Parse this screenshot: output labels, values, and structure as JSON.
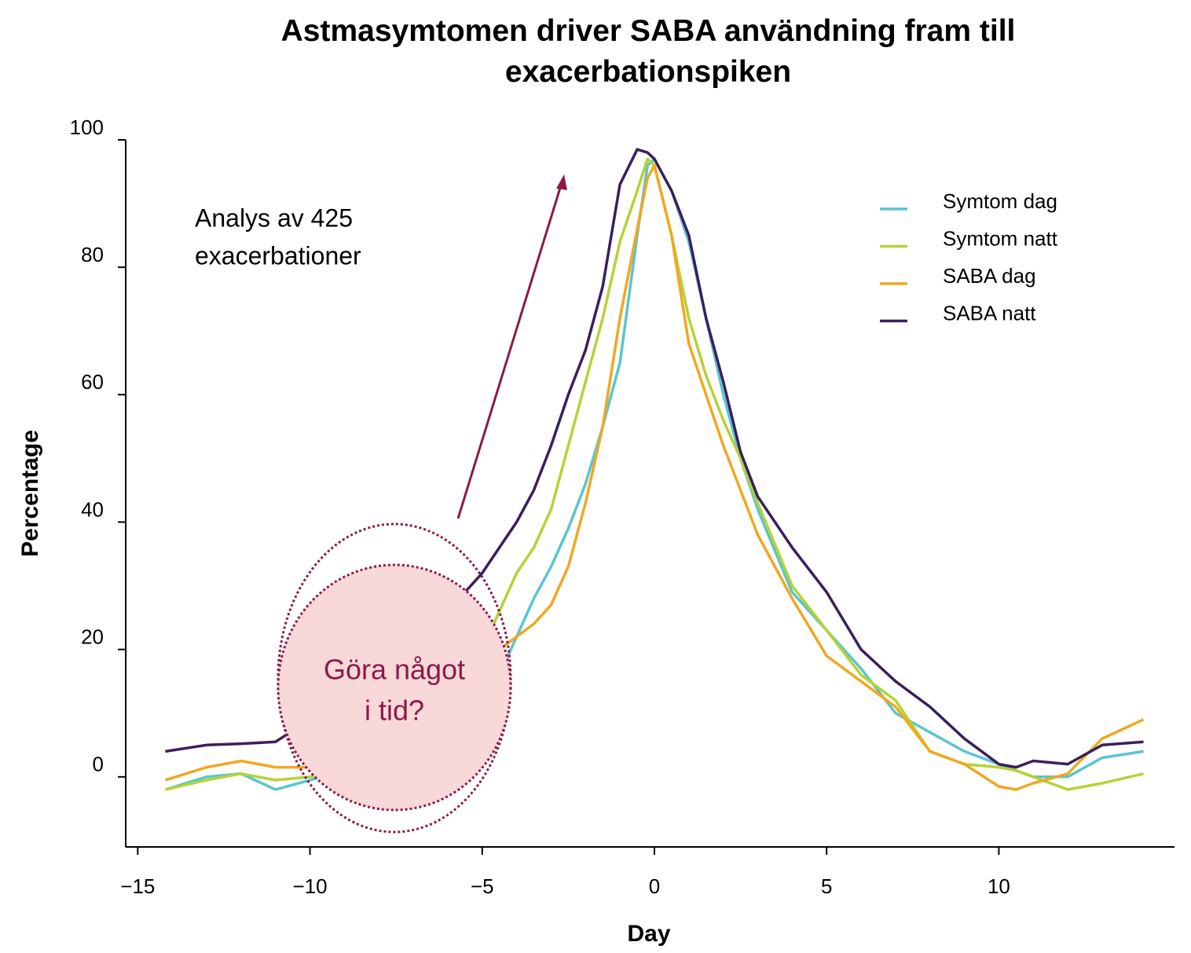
{
  "chart_data": {
    "type": "line",
    "title": "Astmasymtomen driver SABA användning fram till exacerbationspiken",
    "x_label": "Day",
    "y_label": "Percentage",
    "annotation": [
      "Analys av 425",
      "exacerbationer"
    ],
    "callout": [
      "Göra något",
      "i tid?"
    ],
    "x": [
      -14.2,
      -13,
      -12,
      -11,
      -10,
      -9,
      -8,
      -7,
      -6,
      -5,
      -4.5,
      -4,
      -3.5,
      -3,
      -2.5,
      -2,
      -1.5,
      -1,
      -0.5,
      -0.2,
      0,
      0.5,
      1,
      1.5,
      2,
      2.5,
      3,
      4,
      5,
      6,
      7,
      8,
      9,
      10,
      10.5,
      11,
      12,
      13,
      14.2
    ],
    "series": [
      {
        "name": "Symtom dag",
        "color": "#5bc4d1",
        "values": [
          -2,
          0,
          0.5,
          -2,
          -0.5,
          1,
          2,
          4,
          7,
          12,
          16,
          22,
          28,
          33,
          39,
          46,
          55,
          65,
          85,
          96,
          97,
          92,
          84,
          72,
          60,
          50,
          42,
          29,
          23,
          17,
          10,
          7,
          4,
          2,
          1,
          0,
          0,
          3,
          4
        ]
      },
      {
        "name": "Symtom natt",
        "color": "#b5d334",
        "values": [
          -2,
          -0.5,
          0.5,
          -0.5,
          0,
          1,
          3,
          7,
          12,
          20,
          26,
          32,
          36,
          42,
          52,
          62,
          72,
          84,
          92,
          97,
          96,
          85,
          72,
          63,
          56,
          50,
          43,
          30,
          23,
          16,
          12,
          4,
          2,
          1.5,
          1,
          0,
          -2,
          -1,
          0.5
        ]
      },
      {
        "name": "SABA dag",
        "color": "#f0a820",
        "values": [
          -0.5,
          1.5,
          2.5,
          1.5,
          1.5,
          2,
          4,
          7,
          12,
          18,
          20,
          22,
          24,
          27,
          33,
          43,
          55,
          72,
          86,
          94,
          96,
          85,
          68,
          60,
          52,
          45,
          38,
          28,
          19,
          15,
          11,
          4,
          2,
          -1.5,
          -2,
          -1,
          0.5,
          6,
          9
        ]
      },
      {
        "name": "SABA natt",
        "color": "#3a1f5d",
        "values": [
          4,
          5,
          5.2,
          5.5,
          9,
          13,
          17,
          21,
          26,
          32,
          36,
          40,
          45,
          52,
          60,
          67,
          77,
          93,
          98.5,
          98,
          97,
          92,
          85,
          72,
          62,
          51,
          44,
          36,
          29,
          20,
          15,
          11,
          6,
          2,
          1.5,
          2.5,
          2,
          5,
          5.5
        ]
      }
    ],
    "xlim": [
      -15.35,
      15.1
    ],
    "ylim": [
      -11,
      100
    ],
    "xticks": [
      {
        "value": -15,
        "label": "−15"
      },
      {
        "value": -10,
        "label": "−10"
      },
      {
        "value": -5,
        "label": "−5"
      },
      0,
      5,
      10
    ],
    "yticks": [
      0,
      20,
      40,
      60,
      80,
      100
    ],
    "legend": "upper right"
  }
}
